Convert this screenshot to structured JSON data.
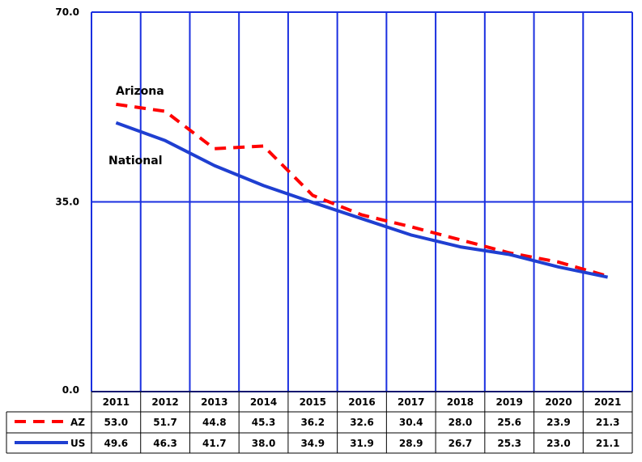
{
  "chart_data": {
    "type": "line",
    "categories": [
      "2011",
      "2012",
      "2013",
      "2014",
      "2015",
      "2016",
      "2017",
      "2018",
      "2019",
      "2020",
      "2021"
    ],
    "series": [
      {
        "name": "AZ",
        "color": "#ff0000",
        "dash": true,
        "values": [
          53.0,
          51.7,
          44.8,
          45.3,
          36.2,
          32.6,
          30.4,
          28.0,
          25.6,
          23.9,
          21.3
        ]
      },
      {
        "name": "US",
        "color": "#1f3fd1",
        "dash": false,
        "values": [
          49.6,
          46.3,
          41.7,
          38.0,
          34.9,
          31.9,
          28.9,
          26.7,
          25.3,
          23.0,
          21.1
        ]
      }
    ],
    "ylim": [
      0,
      70
    ],
    "yticks": [
      "0.0",
      "35.0",
      "70.0"
    ],
    "grid": true,
    "annotations": [
      {
        "text": "Arizona",
        "series": "AZ"
      },
      {
        "text": "National",
        "series": "US"
      }
    ],
    "data_table": {
      "rows": [
        {
          "label": "AZ",
          "values": [
            "53.0",
            "51.7",
            "44.8",
            "45.3",
            "36.2",
            "32.6",
            "30.4",
            "28.0",
            "25.6",
            "23.9",
            "21.3"
          ]
        },
        {
          "label": "US",
          "values": [
            "49.6",
            "46.3",
            "41.7",
            "38.0",
            "34.9",
            "31.9",
            "28.9",
            "26.7",
            "25.3",
            "23.0",
            "21.1"
          ]
        }
      ]
    }
  }
}
